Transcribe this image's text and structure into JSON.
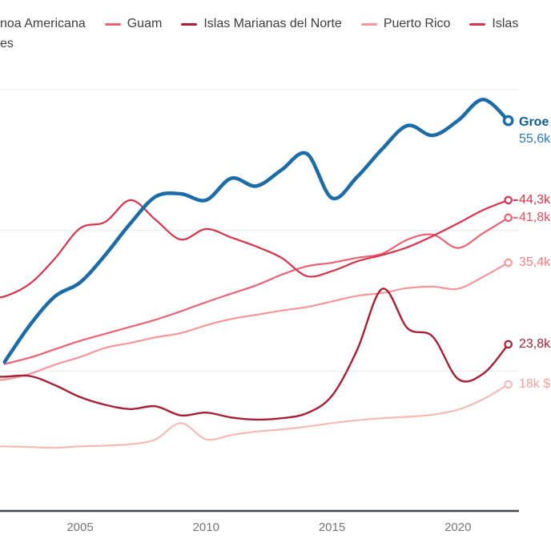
{
  "legend": {
    "row1_fragment": "noa Americana",
    "row1_items": [
      {
        "label": "Guam",
        "color": "#ec6274"
      },
      {
        "label": "Islas Marianas del Norte",
        "color": "#a81e35"
      },
      {
        "label": "Puerto Rico",
        "color": "#f4979a"
      },
      {
        "label": "Islas",
        "color": "#d6344c"
      }
    ],
    "row2_fragment": "es"
  },
  "x_axis": {
    "ticks": [
      2005,
      2010,
      2015,
      2020
    ],
    "tick_color": "#767676",
    "axis_color": "#3e464c"
  },
  "chart_data": {
    "type": "line",
    "unit": "k $ (thousands of US$ per capita)",
    "years": [
      2002,
      2003,
      2004,
      2005,
      2006,
      2007,
      2008,
      2009,
      2010,
      2011,
      2012,
      2013,
      2014,
      2015,
      2016,
      2017,
      2018,
      2019,
      2020,
      2021,
      2022
    ],
    "ylim_k": [
      0,
      65
    ],
    "gridline_values_k": [
      20,
      40,
      60
    ],
    "grid_color": "#e9e9e9",
    "xlim_years": [
      2001.8,
      2022.6
    ],
    "legend_position": "top",
    "series": [
      {
        "name": "Samoa Americana",
        "color": "#f6bab4",
        "width": 2.2,
        "extend_left": true,
        "end_label": "18k $",
        "label_color": "#f2a19d",
        "values": [
          9.3,
          9.2,
          9.1,
          9.3,
          9.4,
          9.6,
          10.3,
          12.6,
          10.3,
          10.9,
          11.4,
          11.7,
          12.1,
          12.6,
          13.0,
          13.3,
          13.5,
          13.8,
          14.5,
          16.0,
          18.1
        ]
      },
      {
        "name": "Puerto Rico",
        "color": "#f4979a",
        "width": 2.2,
        "extend_left": true,
        "end_label": "35,4k",
        "label_color": "#ee7f86",
        "values": [
          18.8,
          19.6,
          20.9,
          22.0,
          23.3,
          24.0,
          24.8,
          25.4,
          26.5,
          27.4,
          28.0,
          28.6,
          29.1,
          29.9,
          30.7,
          31.1,
          31.8,
          32.0,
          31.7,
          33.4,
          35.4
        ]
      },
      {
        "name": "Islas Marianas del Norte",
        "color": "#a81e35",
        "width": 2.4,
        "extend_left": true,
        "end_label": "23,8k",
        "label_color": "#a81e35",
        "values": [
          19.2,
          19.3,
          18.0,
          16.3,
          15.2,
          14.6,
          15.0,
          13.7,
          14.1,
          13.4,
          13.1,
          13.3,
          14.0,
          16.5,
          23.0,
          31.7,
          26.1,
          24.9,
          18.9,
          19.6,
          23.8
        ]
      },
      {
        "name": "Guam",
        "color": "#ec6274",
        "width": 2.2,
        "extend_left": false,
        "end_label": "41,8k",
        "label_color": "#e25266",
        "end_dash": true,
        "values": [
          21.0,
          21.9,
          23.1,
          24.3,
          25.3,
          26.3,
          27.3,
          28.5,
          29.8,
          31.0,
          32.2,
          33.7,
          34.9,
          35.4,
          36.1,
          36.7,
          38.7,
          39.4,
          37.5,
          39.6,
          41.8
        ]
      },
      {
        "name": "Islas Vírgenes",
        "color": "#d6344c",
        "width": 2.2,
        "extend_left": true,
        "end_label": "44,3k",
        "label_color": "#d6344c",
        "end_dash": true,
        "values": [
          30.6,
          32.4,
          36.0,
          40.3,
          41.2,
          44.3,
          41.5,
          38.7,
          40.2,
          39.0,
          37.7,
          36.1,
          33.5,
          34.2,
          35.6,
          36.5,
          37.6,
          39.2,
          41.0,
          42.9,
          44.3
        ]
      },
      {
        "name": "Groenlandia",
        "color": "#1b6ca8",
        "width": 4.5,
        "extend_left": false,
        "end_label": "55,6k",
        "end_name_label": "Groe",
        "name_color": "#0d5f99",
        "label_color": "#2a7ab5",
        "values": [
          21.3,
          26.5,
          30.6,
          32.6,
          36.5,
          41.0,
          44.8,
          45.2,
          44.3,
          47.4,
          46.3,
          48.6,
          50.9,
          44.6,
          47.6,
          51.6,
          54.9,
          53.5,
          55.6,
          58.6,
          55.6
        ]
      }
    ]
  }
}
